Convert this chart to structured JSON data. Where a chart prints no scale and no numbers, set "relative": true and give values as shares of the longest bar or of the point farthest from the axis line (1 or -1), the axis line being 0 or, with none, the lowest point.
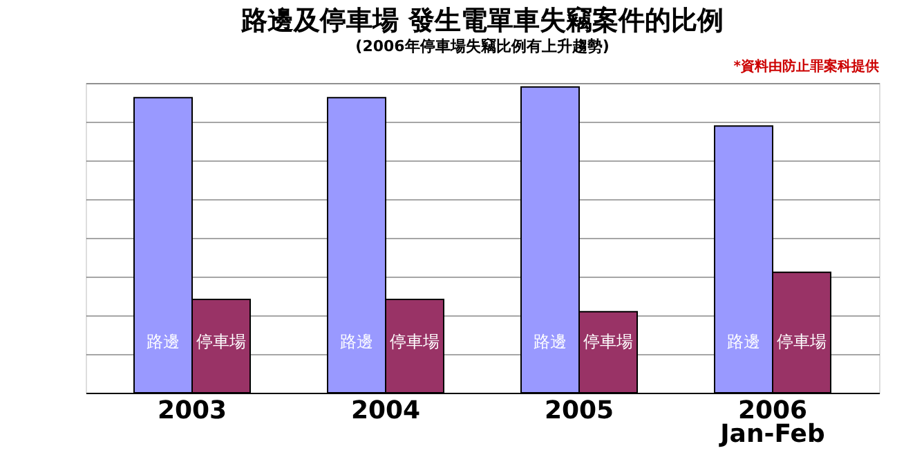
{
  "chart_data": {
    "type": "bar",
    "title": "路邊及停車場 發生電單車失竊案件的比例",
    "subtitle": "(2006年停車場失竊比例有上升趨勢)",
    "annotations": [
      "*資料由防止罪案科提供"
    ],
    "categories": [
      "2003",
      "2004",
      "2005",
      "2006\nJan-Feb"
    ],
    "relative": true,
    "grid": "y",
    "series": [
      {
        "name": "路邊",
        "color": "#9999ff",
        "values": [
          0.965,
          0.965,
          1,
          0.872
        ]
      },
      {
        "name": "停車場",
        "color": "#993366",
        "values": [
          0.305,
          0.305,
          0.265,
          0.394
        ]
      }
    ]
  }
}
